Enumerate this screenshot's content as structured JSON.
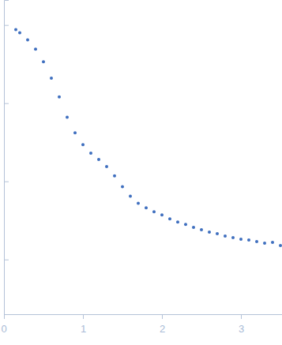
{
  "chart_data": {
    "type": "scatter",
    "x": [
      0.15,
      0.2,
      0.3,
      0.4,
      0.5,
      0.6,
      0.7,
      0.8,
      0.9,
      1.0,
      1.1,
      1.2,
      1.3,
      1.4,
      1.5,
      1.6,
      1.7,
      1.8,
      1.9,
      2.0,
      2.1,
      2.2,
      2.3,
      2.4,
      2.5,
      2.6,
      2.7,
      2.8,
      2.9,
      3.0,
      3.1,
      3.2,
      3.3,
      3.4,
      3.5
    ],
    "values": [
      3.94,
      3.9,
      3.81,
      3.69,
      3.53,
      3.32,
      3.08,
      2.82,
      2.62,
      2.47,
      2.36,
      2.28,
      2.19,
      2.07,
      1.93,
      1.81,
      1.72,
      1.66,
      1.61,
      1.57,
      1.52,
      1.48,
      1.45,
      1.41,
      1.38,
      1.35,
      1.33,
      1.3,
      1.28,
      1.26,
      1.25,
      1.23,
      1.21,
      1.22,
      1.18
    ],
    "color": "#3f6fbf",
    "marker": "circle",
    "xlim": [
      0,
      3.52
    ],
    "xticks": [
      0,
      1,
      2,
      3
    ],
    "ylim": [
      0.3,
      4.32
    ],
    "yticks": [
      1,
      2,
      3,
      4
    ],
    "tick_labels": "x"
  }
}
